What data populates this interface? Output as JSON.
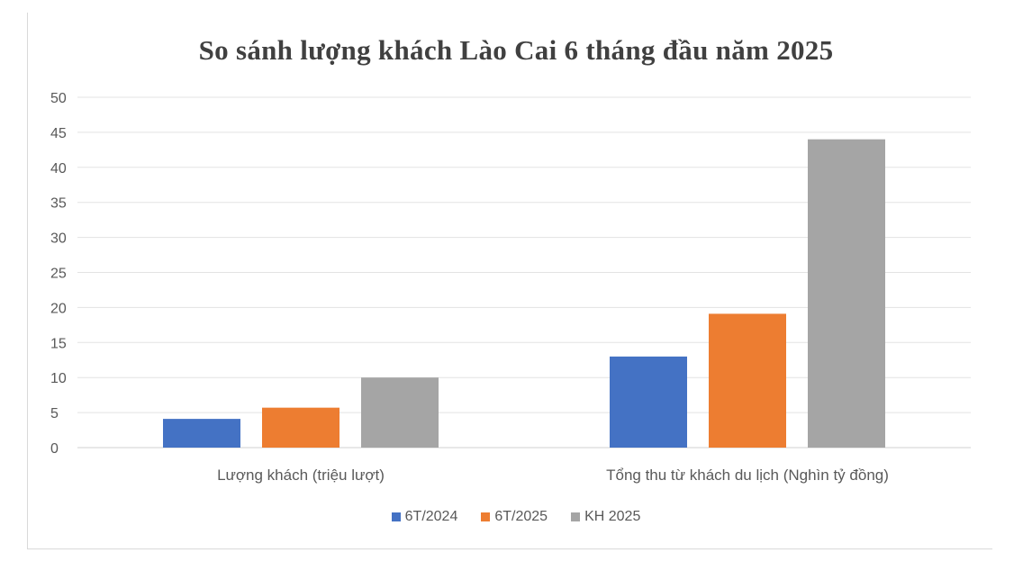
{
  "chart_data": {
    "type": "bar",
    "title": "So sánh lượng khách Lào Cai 6 tháng đầu năm 2025",
    "categories": [
      "Lượng khách (triệu lượt)",
      "Tổng thu từ khách du lịch (Nghìn tỷ đồng)"
    ],
    "series": [
      {
        "name": "6T/2024",
        "color": "#4472c4",
        "values": [
          4.1,
          13.0
        ]
      },
      {
        "name": "6T/2025",
        "color": "#ed7d31",
        "values": [
          5.7,
          19.1
        ]
      },
      {
        "name": "KH 2025",
        "color": "#a5a5a5",
        "values": [
          10.0,
          44.0
        ]
      }
    ],
    "yticks": [
      "0",
      "5",
      "10",
      "15",
      "20",
      "25",
      "30",
      "35",
      "40",
      "45",
      "50"
    ],
    "ylim": [
      0,
      50
    ],
    "grid": true,
    "legend_position": "bottom"
  }
}
